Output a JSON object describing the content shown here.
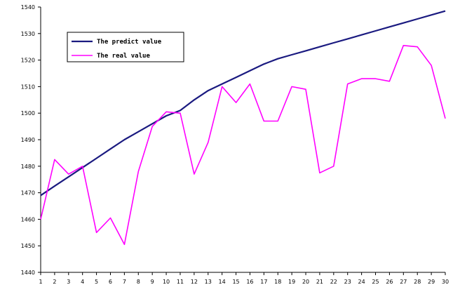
{
  "chart_data": {
    "type": "line",
    "x": [
      1,
      2,
      3,
      4,
      5,
      6,
      7,
      8,
      9,
      10,
      11,
      12,
      13,
      14,
      15,
      16,
      17,
      18,
      19,
      20,
      21,
      22,
      23,
      24,
      25,
      26,
      27,
      28,
      29,
      30
    ],
    "x_tick_labels": [
      "1",
      "2",
      "3",
      "4",
      "5",
      "6",
      "7",
      "8",
      "9",
      "10",
      "11",
      "12",
      "13",
      "14",
      "15",
      "16",
      "17",
      "18",
      "19",
      "20",
      "21",
      "22",
      "23",
      "24",
      "25",
      "26",
      "27",
      "28",
      "29",
      "30"
    ],
    "ylim": [
      1440,
      1540
    ],
    "y_ticks": [
      1440,
      1450,
      1460,
      1470,
      1480,
      1490,
      1500,
      1510,
      1520,
      1530,
      1540
    ],
    "y_tick_labels": [
      "1440",
      "1450",
      "1460",
      "1470",
      "1480",
      "1490",
      "1500",
      "1510",
      "1520",
      "1530",
      "1540"
    ],
    "grid": false,
    "legend_position": "top-left",
    "series": [
      {
        "name": "The predict value",
        "color": "#1a1a80",
        "values": [
          1469,
          1472.5,
          1476,
          1479.5,
          1483,
          1486.5,
          1490,
          1493,
          1496,
          1499,
          1501,
          1505,
          1508.5,
          1511,
          1513.5,
          1516,
          1518.5,
          1520.5,
          1522,
          1523.5,
          1525,
          1526.5,
          1528,
          1529.5,
          1531,
          1532.5,
          1534,
          1535.5,
          1537,
          1538.5
        ]
      },
      {
        "name": "The real value",
        "color": "#ff00ff",
        "values": [
          1460,
          1482.5,
          1477,
          1480,
          1455,
          1460.5,
          1450.5,
          1478,
          1495,
          1500.5,
          1500,
          1477,
          1489,
          1510,
          1504,
          1511,
          1497,
          1497,
          1510,
          1509,
          1477.5,
          1480,
          1511,
          1513,
          1513,
          1512,
          1525.5,
          1525,
          1518,
          1498
        ]
      }
    ]
  }
}
